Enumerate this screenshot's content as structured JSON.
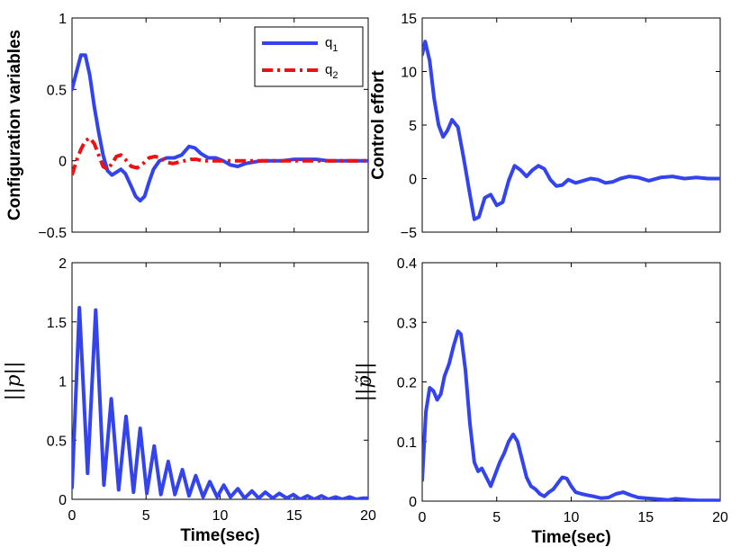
{
  "chart_data": [
    {
      "type": "line",
      "id": "configuration",
      "ylabel": "Configuration variables",
      "xlabel": "",
      "xlim": [
        0,
        20
      ],
      "ylim": [
        -0.5,
        1
      ],
      "xticks": [],
      "yticks": [
        -0.5,
        0,
        0.5,
        1
      ],
      "ytick_labels": [
        "−0.5",
        "0",
        "0.5",
        "1"
      ],
      "legend": {
        "position": "top-right"
      },
      "series": [
        {
          "name": "q1",
          "label_base": "q",
          "label_sub": "1",
          "color": "#3344ee",
          "style": "solid",
          "x": [
            0,
            0.3,
            0.6,
            0.9,
            1.2,
            1.5,
            1.8,
            2.1,
            2.4,
            2.7,
            3.0,
            3.3,
            3.6,
            4.0,
            4.3,
            4.6,
            4.9,
            5.2,
            5.5,
            5.9,
            6.4,
            6.9,
            7.4,
            7.9,
            8.3,
            8.7,
            9.2,
            9.7,
            10.2,
            10.7,
            11.2,
            11.7,
            12.2,
            12.8,
            13.5,
            14.2,
            15.0,
            15.7,
            16.5,
            17.3,
            18.2,
            19.1,
            20.0
          ],
          "y": [
            0.5,
            0.62,
            0.74,
            0.74,
            0.6,
            0.38,
            0.2,
            0.04,
            -0.07,
            -0.1,
            -0.08,
            -0.06,
            -0.09,
            -0.18,
            -0.25,
            -0.28,
            -0.25,
            -0.15,
            -0.06,
            0.0,
            0.02,
            0.02,
            0.04,
            0.1,
            0.09,
            0.05,
            0.02,
            0.02,
            0.0,
            -0.03,
            -0.04,
            -0.02,
            -0.01,
            0.0,
            0.0,
            0.0,
            0.01,
            0.01,
            0.01,
            0.0,
            0.0,
            0.0,
            0.0
          ]
        },
        {
          "name": "q2",
          "label_base": "q",
          "label_sub": "2",
          "color": "#ee1111",
          "style": "dashdot",
          "x": [
            0,
            0.3,
            0.6,
            0.9,
            1.2,
            1.5,
            1.8,
            2.1,
            2.4,
            2.7,
            3.0,
            3.3,
            3.6,
            4.0,
            4.4,
            4.8,
            5.2,
            5.6,
            6.0,
            6.4,
            6.8,
            7.2,
            7.6,
            8.0,
            8.4,
            8.8,
            9.2,
            9.7,
            10.3,
            11.0,
            11.8,
            12.6,
            13.5,
            14.5,
            15.5,
            16.5,
            17.5,
            18.5,
            19.5,
            20.0
          ],
          "y": [
            -0.1,
            0.0,
            0.08,
            0.14,
            0.16,
            0.12,
            0.04,
            -0.04,
            -0.06,
            -0.02,
            0.03,
            0.04,
            0.01,
            -0.04,
            -0.05,
            -0.02,
            0.02,
            0.03,
            0.02,
            -0.01,
            -0.02,
            -0.01,
            0.0,
            0.01,
            0.01,
            0.0,
            0.0,
            0.0,
            0.0,
            0.0,
            0.0,
            0.0,
            0.0,
            0.0,
            0.0,
            0.0,
            0.0,
            0.0,
            0.0,
            0.0
          ]
        }
      ]
    },
    {
      "type": "line",
      "id": "control",
      "ylabel": "Control effort",
      "xlabel": "",
      "xlim": [
        0,
        20
      ],
      "ylim": [
        -5,
        15
      ],
      "xticks": [],
      "yticks": [
        -5,
        0,
        5,
        10,
        15
      ],
      "ytick_labels": [
        "−5",
        "0",
        "5",
        "10",
        "15"
      ],
      "series": [
        {
          "name": "control effort",
          "color": "#3344ee",
          "style": "solid",
          "x": [
            0,
            0.2,
            0.5,
            0.8,
            1.1,
            1.4,
            1.7,
            2.0,
            2.4,
            2.8,
            3.2,
            3.5,
            3.8,
            4.2,
            4.6,
            5.0,
            5.4,
            5.8,
            6.2,
            6.6,
            7.0,
            7.4,
            7.8,
            8.2,
            8.6,
            9.0,
            9.4,
            9.8,
            10.3,
            10.8,
            11.3,
            11.8,
            12.3,
            12.8,
            13.3,
            13.9,
            14.5,
            15.2,
            16.0,
            16.8,
            17.6,
            18.4,
            19.2,
            20.0
          ],
          "y": [
            11.6,
            12.8,
            11.0,
            7.5,
            5.0,
            3.9,
            4.5,
            5.5,
            4.8,
            1.8,
            -1.5,
            -3.8,
            -3.6,
            -1.8,
            -1.5,
            -2.5,
            -2.2,
            -0.2,
            1.2,
            0.8,
            0.2,
            0.8,
            1.2,
            0.9,
            -0.1,
            -0.7,
            -0.6,
            -0.1,
            -0.4,
            -0.2,
            0.0,
            -0.1,
            -0.4,
            -0.3,
            0.0,
            0.2,
            0.1,
            -0.2,
            0.1,
            0.2,
            0.0,
            0.1,
            0.0,
            0.0
          ]
        }
      ]
    },
    {
      "type": "line",
      "id": "p_norm",
      "ylabel": "||p||",
      "xlabel": "Time(sec)",
      "xlim": [
        0,
        20
      ],
      "ylim": [
        0,
        2
      ],
      "xticks": [
        0,
        5,
        10,
        15,
        20
      ],
      "xtick_labels": [
        "0",
        "5",
        "10",
        "15",
        "20"
      ],
      "yticks": [
        0,
        0.5,
        1,
        1.5,
        2
      ],
      "ytick_labels": [
        "0",
        "0.5",
        "1",
        "1.5",
        "2"
      ],
      "series": [
        {
          "name": "||p||",
          "color": "#3344ee",
          "style": "solid",
          "x": [
            0,
            0.5,
            1.05,
            1.6,
            2.15,
            2.65,
            3.15,
            3.65,
            4.15,
            4.6,
            5.05,
            5.55,
            6.0,
            6.5,
            6.95,
            7.45,
            7.9,
            8.35,
            8.85,
            9.3,
            9.8,
            10.25,
            10.7,
            11.2,
            11.65,
            12.15,
            12.6,
            13.05,
            13.55,
            14.0,
            14.5,
            14.95,
            15.4,
            15.9,
            16.35,
            16.85,
            17.3,
            17.8,
            18.25,
            18.75,
            19.2,
            19.65,
            20.0
          ],
          "y": [
            0.1,
            1.62,
            0.22,
            1.6,
            0.12,
            0.85,
            0.08,
            0.7,
            0.06,
            0.6,
            0.05,
            0.45,
            0.04,
            0.32,
            0.04,
            0.25,
            0.03,
            0.2,
            0.02,
            0.15,
            0.02,
            0.12,
            0.02,
            0.09,
            0.01,
            0.07,
            0.01,
            0.06,
            0.01,
            0.05,
            0.01,
            0.04,
            0.0,
            0.03,
            0.0,
            0.03,
            0.0,
            0.02,
            0.0,
            0.02,
            0.0,
            0.01,
            0.01
          ]
        }
      ]
    },
    {
      "type": "line",
      "id": "p_tilde_norm",
      "ylabel": "||p̃||",
      "xlabel": "Time(sec)",
      "xlim": [
        0,
        20
      ],
      "ylim": [
        0,
        0.4
      ],
      "xticks": [
        0,
        5,
        10,
        15,
        20
      ],
      "xtick_labels": [
        "0",
        "5",
        "10",
        "15",
        "20"
      ],
      "yticks": [
        0,
        0.1,
        0.2,
        0.3,
        0.4
      ],
      "ytick_labels": [
        "0",
        "0.1",
        "0.2",
        "0.3",
        "0.4"
      ],
      "series": [
        {
          "name": "||p tilde||",
          "color": "#3344ee",
          "style": "solid",
          "x": [
            0,
            0.25,
            0.5,
            0.75,
            1.0,
            1.25,
            1.5,
            1.8,
            2.1,
            2.4,
            2.6,
            2.9,
            3.2,
            3.5,
            3.75,
            4.0,
            4.3,
            4.6,
            4.9,
            5.2,
            5.5,
            5.8,
            6.1,
            6.4,
            6.7,
            7.0,
            7.3,
            7.6,
            7.9,
            8.2,
            8.5,
            8.8,
            9.1,
            9.4,
            9.7,
            10.0,
            10.3,
            10.7,
            11.1,
            11.5,
            12.0,
            12.5,
            13.0,
            13.5,
            14.0,
            14.5,
            15.0,
            15.5,
            16.0,
            16.5,
            17.0,
            17.5,
            18.0,
            18.5,
            19.0,
            19.5,
            20.0
          ],
          "y": [
            0.035,
            0.15,
            0.19,
            0.185,
            0.17,
            0.18,
            0.21,
            0.23,
            0.26,
            0.285,
            0.28,
            0.22,
            0.13,
            0.065,
            0.05,
            0.055,
            0.04,
            0.025,
            0.045,
            0.065,
            0.08,
            0.1,
            0.112,
            0.1,
            0.07,
            0.04,
            0.025,
            0.02,
            0.012,
            0.008,
            0.015,
            0.02,
            0.03,
            0.04,
            0.038,
            0.025,
            0.015,
            0.012,
            0.01,
            0.008,
            0.005,
            0.006,
            0.012,
            0.015,
            0.01,
            0.006,
            0.005,
            0.004,
            0.003,
            0.002,
            0.004,
            0.003,
            0.002,
            0.001,
            0.001,
            0.001,
            0.001
          ]
        }
      ]
    }
  ]
}
